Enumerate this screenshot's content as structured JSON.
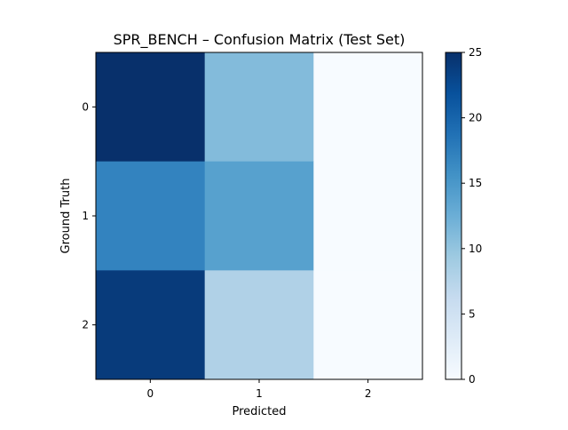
{
  "chart_data": {
    "type": "heatmap",
    "title": "SPR_BENCH – Confusion Matrix (Test Set)",
    "xlabel": "Predicted",
    "ylabel": "Ground Truth",
    "x_categories": [
      "0",
      "1",
      "2"
    ],
    "y_categories": [
      "0",
      "1",
      "2"
    ],
    "values": [
      [
        25,
        11,
        0
      ],
      [
        17,
        14,
        0
      ],
      [
        24,
        8,
        0
      ]
    ],
    "colorbar": {
      "range": [
        0,
        25
      ],
      "ticks": [
        "0",
        "5",
        "10",
        "15",
        "20",
        "25"
      ],
      "colormap": "Blues"
    },
    "grid": false,
    "legend": "none"
  }
}
